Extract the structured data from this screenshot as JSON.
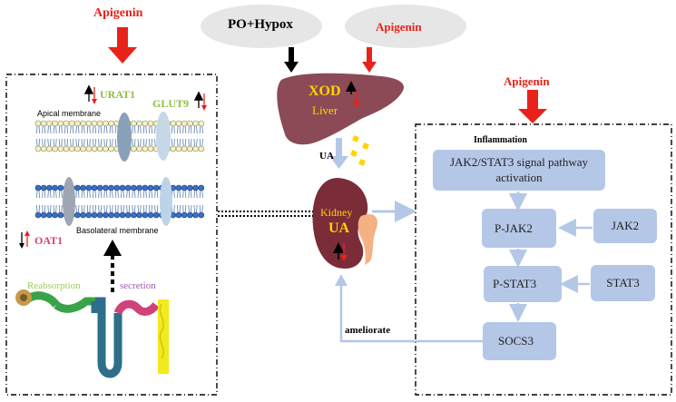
{
  "title_left_apigenin": "Apigenin",
  "title_mid_apigenin": "Apigenin",
  "title_right_apigenin": "Apigenin",
  "po_hypox": "PO+Hypox",
  "liver": {
    "enzyme": "XOD",
    "organ": "Liver"
  },
  "ua_label": "UA",
  "kidney": {
    "organ": "Kidney",
    "metabolite": "UA"
  },
  "transporters": {
    "urat1": "URAT1",
    "glut9": "GLUT9",
    "oat1": "OAT1"
  },
  "membranes": {
    "apical": "Apical membrane",
    "basolateral": "Basolateral membrane"
  },
  "nephron": {
    "reabsorption": "Reabsorption",
    "secretion": "secretion"
  },
  "ameliorate": "ameliorate",
  "inflammation": {
    "title": "Inflammation",
    "pathway": "JAK2/STAT3  signal pathway activation",
    "p_jak2": "P-JAK2",
    "p_stat3": "P-STAT3",
    "socs3": "SOCS3",
    "jak2": "JAK2",
    "stat3": "STAT3"
  },
  "colors": {
    "apigenin": "#e8221b",
    "liver": "#8b4a55",
    "kidney": "#7a2c38",
    "xod_text": "#ffd400",
    "box": "#b4c7e7",
    "urat1": "#8fbf3f",
    "oat1": "#d0427a",
    "reabsorption": "#9acd5a",
    "secretion": "#9b59b6"
  }
}
